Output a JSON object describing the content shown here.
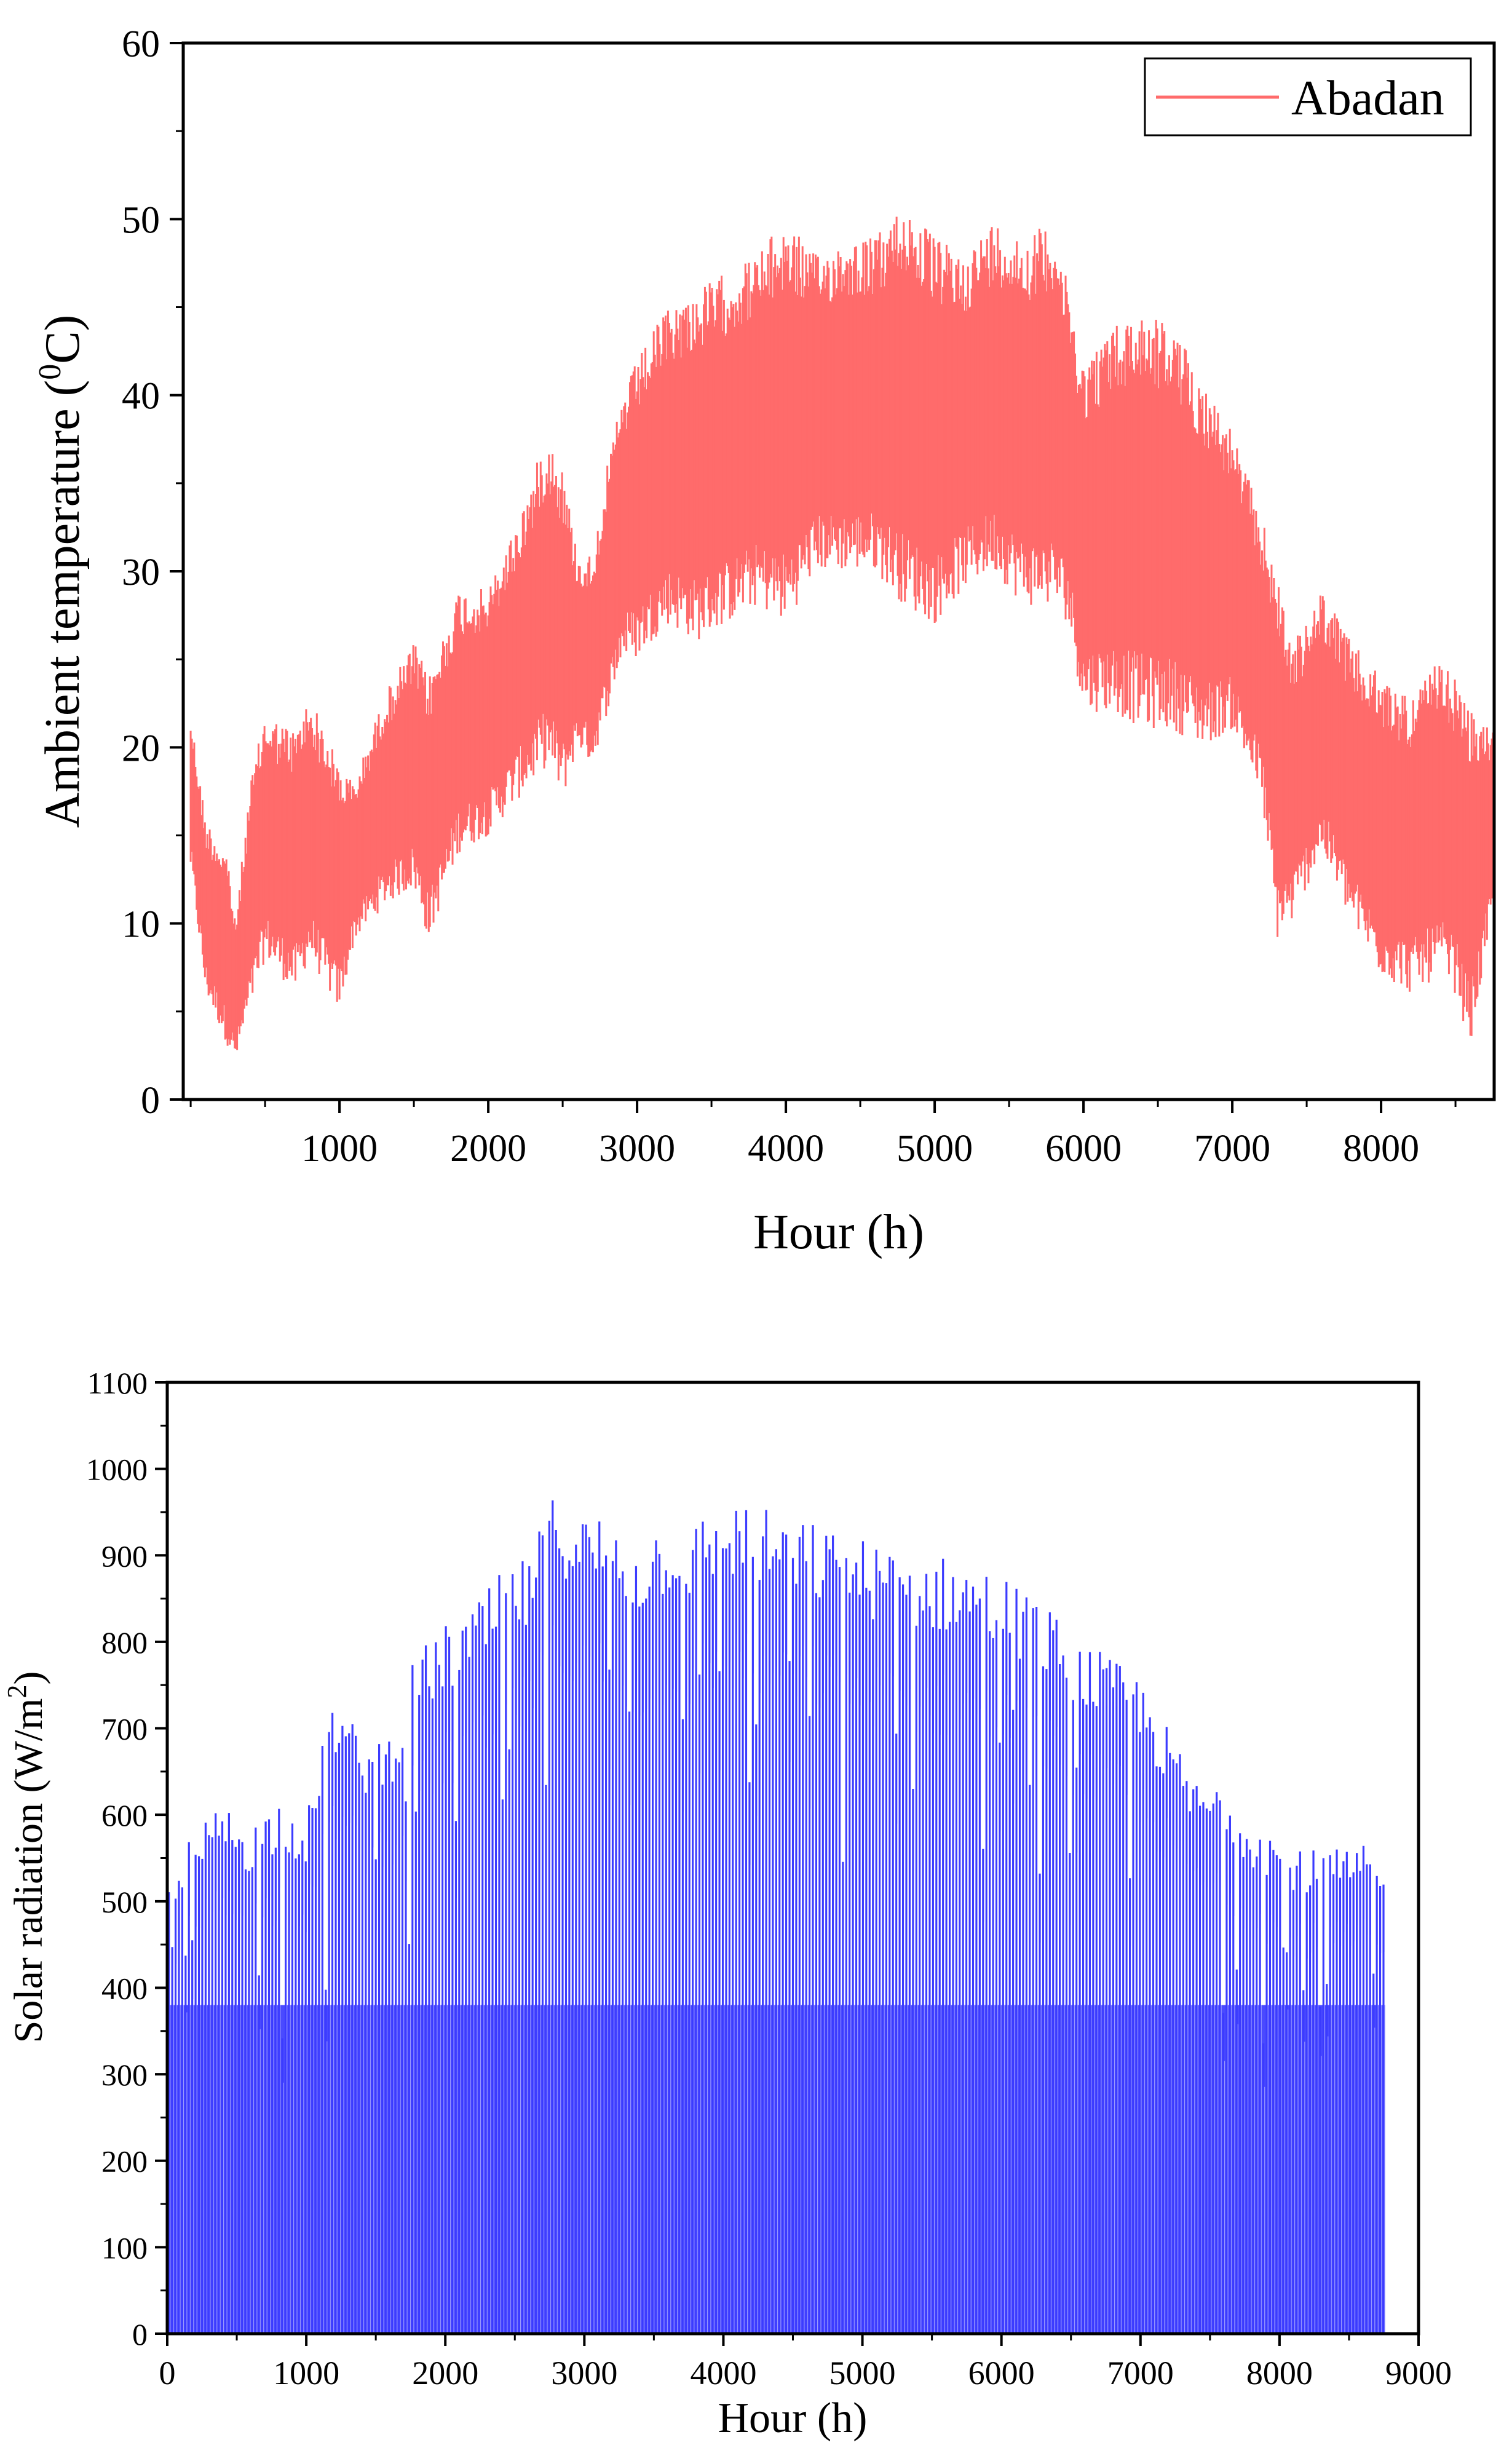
{
  "chart_data": [
    {
      "type": "line",
      "title": "",
      "xlabel": "Hour (h)",
      "ylabel_main": "Ambient temperature (",
      "ylabel_sup": "0",
      "ylabel_tail": "C)",
      "xlim": [
        -50,
        8760
      ],
      "ylim": [
        0,
        60
      ],
      "xticks": [
        1000,
        2000,
        3000,
        4000,
        5000,
        6000,
        7000,
        8000
      ],
      "yticks": [
        0,
        10,
        20,
        30,
        40,
        50,
        60
      ],
      "grid": false,
      "legend_position": "top-right",
      "series": [
        {
          "name": "Abadan",
          "color": "#ff6b6b",
          "envelope": {
            "hour": [
              0,
              100,
              250,
              300,
              400,
              500,
              700,
              800,
              1000,
              1100,
              1300,
              1500,
              1600,
              1800,
              2000,
              2200,
              2400,
              2500,
              2600,
              2700,
              2800,
              2900,
              3000,
              3200,
              3400,
              3600,
              3800,
              4000,
              4200,
              4400,
              4600,
              4800,
              5000,
              5200,
              5400,
              5600,
              5800,
              5900,
              6000,
              6200,
              6400,
              6600,
              6800,
              7000,
              7200,
              7300,
              7400,
              7500,
              7600,
              7800,
              8000,
              8200,
              8400,
              8500,
              8600,
              8760
            ],
            "max": [
              22,
              16,
              14,
              10,
              18,
              22,
              21,
              23,
              19,
              18,
              23,
              26,
              24,
              29,
              29,
              33,
              38,
              36,
              31,
              31,
              36,
              40,
              42,
              45,
              46,
              47,
              48,
              50,
              48,
              49,
              49,
              51,
              49,
              48,
              50,
              49,
              50,
              46,
              42,
              44,
              45,
              44,
              41,
              38,
              33,
              30,
              26,
              27,
              29,
              26,
              24,
              23,
              25,
              24,
              22,
              21
            ],
            "min": [
              13,
              6,
              3,
              2,
              5,
              8,
              6,
              8,
              5,
              9,
              11,
              12,
              9,
              14,
              15,
              17,
              19,
              17,
              20,
              19,
              22,
              25,
              25,
              27,
              26,
              27,
              28,
              27,
              30,
              30,
              30,
              28,
              27,
              29,
              30,
              28,
              28,
              27,
              22,
              22,
              21,
              21,
              20,
              21,
              17,
              9,
              10,
              12,
              14,
              10,
              7,
              6,
              7,
              6,
              3,
              11
            ]
          }
        }
      ]
    },
    {
      "type": "bar",
      "title": "",
      "xlabel": "Hour (h)",
      "ylabel_main": "Solar radiation (W/m",
      "ylabel_sup": "2",
      "ylabel_tail": ")",
      "xlim": [
        0,
        9000
      ],
      "ylim": [
        0,
        1100
      ],
      "xticks": [
        0,
        1000,
        2000,
        3000,
        4000,
        5000,
        6000,
        7000,
        8000,
        9000
      ],
      "yticks": [
        0,
        100,
        200,
        300,
        400,
        500,
        600,
        700,
        800,
        900,
        1000,
        1100
      ],
      "grid": false,
      "series": [
        {
          "name": "Solar radiation",
          "color": "#3b3bff",
          "daily_peak_envelope": {
            "hour": [
              0,
              200,
              400,
              600,
              800,
              1000,
              1200,
              1400,
              1600,
              1800,
              2000,
              2200,
              2400,
              2600,
              2800,
              3000,
              3200,
              3400,
              3600,
              3800,
              4000,
              4200,
              4400,
              4600,
              4800,
              5000,
              5200,
              5400,
              5600,
              5800,
              6000,
              6200,
              6400,
              6600,
              6800,
              7000,
              7200,
              7400,
              7600,
              7800,
              8000,
              8200,
              8400,
              8600,
              8750
            ],
            "peak": [
              545,
              580,
              615,
              590,
              620,
              600,
              740,
              690,
              700,
              790,
              820,
              840,
              880,
              900,
              980,
              950,
              950,
              920,
              950,
              940,
              970,
              960,
              950,
              940,
              930,
              920,
              910,
              900,
              900,
              890,
              880,
              860,
              830,
              800,
              780,
              760,
              700,
              640,
              640,
              600,
              580,
              560,
              560,
              565,
              540
            ]
          }
        }
      ]
    }
  ]
}
